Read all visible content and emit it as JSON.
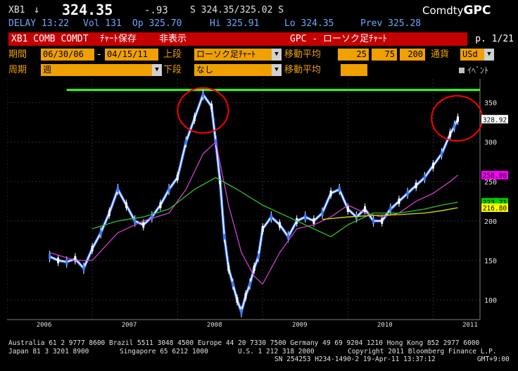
{
  "header": {
    "ticker": "XB1",
    "arrow": "↓",
    "price": "324.35",
    "change": "-.93",
    "bid_ask": "S 324.35/325.02 S",
    "brand_prefix": "Comdty",
    "brand_suffix": "GPC",
    "delay": "DELAY 13:22",
    "vol": "Vol 131",
    "open": "Op 325.70",
    "high": "Hi 325.91",
    "low": "Lo 324.35",
    "prev": "Prev 325.28"
  },
  "toolbar": {
    "security": "XB1 COMB COMDT",
    "save_chart": "ﾁｬｰﾄ保存",
    "hide": "非表示",
    "title": "GPC - ローソク足ﾁｬｰﾄ",
    "page": "p. 1/21"
  },
  "controls": {
    "period_label": "期間",
    "date_from": "06/30/06",
    "date_sep": "-",
    "date_to": "04/15/11",
    "upper_label": "上段",
    "upper_value": "ローソク足ﾁｬｰﾄ",
    "ma_label": "移動平均",
    "ma1": "25",
    "ma2": "75",
    "ma3": "200",
    "currency_label": "通貨",
    "currency_value": "USd",
    "cycle_label": "周期",
    "cycle_value": "週",
    "lower_label": "下段",
    "lower_value": "なし",
    "ma_label2": "移動平均",
    "event_label": "ｲﾍﾞﾝﾄ"
  },
  "chart_data": {
    "type": "line",
    "title": "",
    "x_ticks": [
      "2006",
      "2007",
      "2008",
      "2009",
      "2010",
      "2011"
    ],
    "y_ticks": [
      100,
      150,
      200,
      250,
      300,
      350
    ],
    "ylim": [
      75,
      380
    ],
    "resistance_level": 366,
    "price_tags": [
      {
        "value": "328.92",
        "y": 328.92,
        "color": "#ffffff"
      },
      {
        "value": "258.08",
        "y": 258.08,
        "color": "#ff00ff"
      },
      {
        "value": "223.71",
        "y": 223.71,
        "color": "#00cc00"
      },
      {
        "value": "216.80",
        "y": 216.8,
        "color": "#ffff00"
      }
    ],
    "series": [
      {
        "key": "price",
        "x": [
          2006.5,
          2006.6,
          2006.7,
          2006.8,
          2006.9,
          2007.0,
          2007.1,
          2007.2,
          2007.3,
          2007.4,
          2007.5,
          2007.6,
          2007.7,
          2007.8,
          2007.9,
          2008.0,
          2008.1,
          2008.2,
          2008.3,
          2008.4,
          2008.45,
          2008.5,
          2008.55,
          2008.6,
          2008.65,
          2008.7,
          2008.75,
          2008.8,
          2008.85,
          2008.9,
          2008.95,
          2009.0,
          2009.1,
          2009.2,
          2009.3,
          2009.4,
          2009.5,
          2009.6,
          2009.7,
          2009.8,
          2009.9,
          2010.0,
          2010.1,
          2010.2,
          2010.3,
          2010.4,
          2010.5,
          2010.6,
          2010.7,
          2010.8,
          2010.9,
          2011.0,
          2011.1,
          2011.2,
          2011.25,
          2011.29
        ],
        "y": [
          155,
          150,
          148,
          152,
          140,
          165,
          185,
          210,
          240,
          220,
          200,
          195,
          205,
          220,
          240,
          255,
          300,
          330,
          360,
          345,
          300,
          250,
          180,
          140,
          120,
          100,
          85,
          105,
          120,
          140,
          155,
          190,
          205,
          195,
          180,
          200,
          205,
          200,
          210,
          235,
          240,
          215,
          205,
          215,
          200,
          200,
          215,
          225,
          235,
          245,
          255,
          270,
          285,
          310,
          320,
          328.92
        ],
        "color": "#ffffff"
      },
      {
        "key": "ma25",
        "x": [
          2006.5,
          2006.8,
          2007.0,
          2007.3,
          2007.6,
          2007.9,
          2008.1,
          2008.3,
          2008.45,
          2008.6,
          2008.75,
          2008.9,
          2009.0,
          2009.2,
          2009.4,
          2009.6,
          2009.8,
          2010.0,
          2010.2,
          2010.4,
          2010.6,
          2010.8,
          2011.0,
          2011.2,
          2011.29
        ],
        "y": [
          160,
          150,
          150,
          185,
          200,
          210,
          240,
          285,
          300,
          220,
          160,
          130,
          120,
          160,
          190,
          195,
          205,
          220,
          210,
          205,
          210,
          225,
          235,
          250,
          258.08
        ],
        "color": "#d040d0"
      },
      {
        "key": "ma75",
        "x": [
          2007.0,
          2007.3,
          2007.6,
          2007.9,
          2008.2,
          2008.45,
          2008.7,
          2009.0,
          2009.3,
          2009.6,
          2009.8,
          2010.0,
          2010.3,
          2010.6,
          2010.9,
          2011.1,
          2011.29
        ],
        "y": [
          190,
          200,
          205,
          215,
          240,
          255,
          240,
          220,
          205,
          190,
          180,
          195,
          210,
          210,
          215,
          220,
          223.71
        ],
        "color": "#30c030"
      },
      {
        "key": "ma200",
        "x": [
          2009.7,
          2010.0,
          2010.3,
          2010.6,
          2010.9,
          2011.1,
          2011.29
        ],
        "y": [
          202,
          205,
          207,
          208,
          210,
          213,
          216.8
        ],
        "color": "#e0e000"
      }
    ],
    "annotations": [
      {
        "type": "circle",
        "cx": 2008.3,
        "cy": 340,
        "color": "#ff0000"
      },
      {
        "type": "circle",
        "cx": 2011.28,
        "cy": 330,
        "color": "#ff0000"
      }
    ]
  },
  "footer": {
    "line1": "Australia 61 2 9777 8600 Brazil 5511 3048 4500 Europe 44 20 7330 7500 Germany 49 69 9204 1210 Hong Kong 852 2977 6000",
    "line2a": "Japan 81 3 3201 8900",
    "line2b": "Singapore 65 6212 1000",
    "line2c": "U.S. 1 212 318 2000",
    "line2d": "Copyright 2011 Bloomberg Finance L.P.",
    "line3a": "SN 254253 H234-1490-2 19-Apr-11 13:37:12",
    "line3b": "GMT+9:00"
  },
  "colors": {
    "accent_orange": "#f0a000",
    "toolbar_red": "#c40000",
    "resistance_green": "#40ff20"
  }
}
